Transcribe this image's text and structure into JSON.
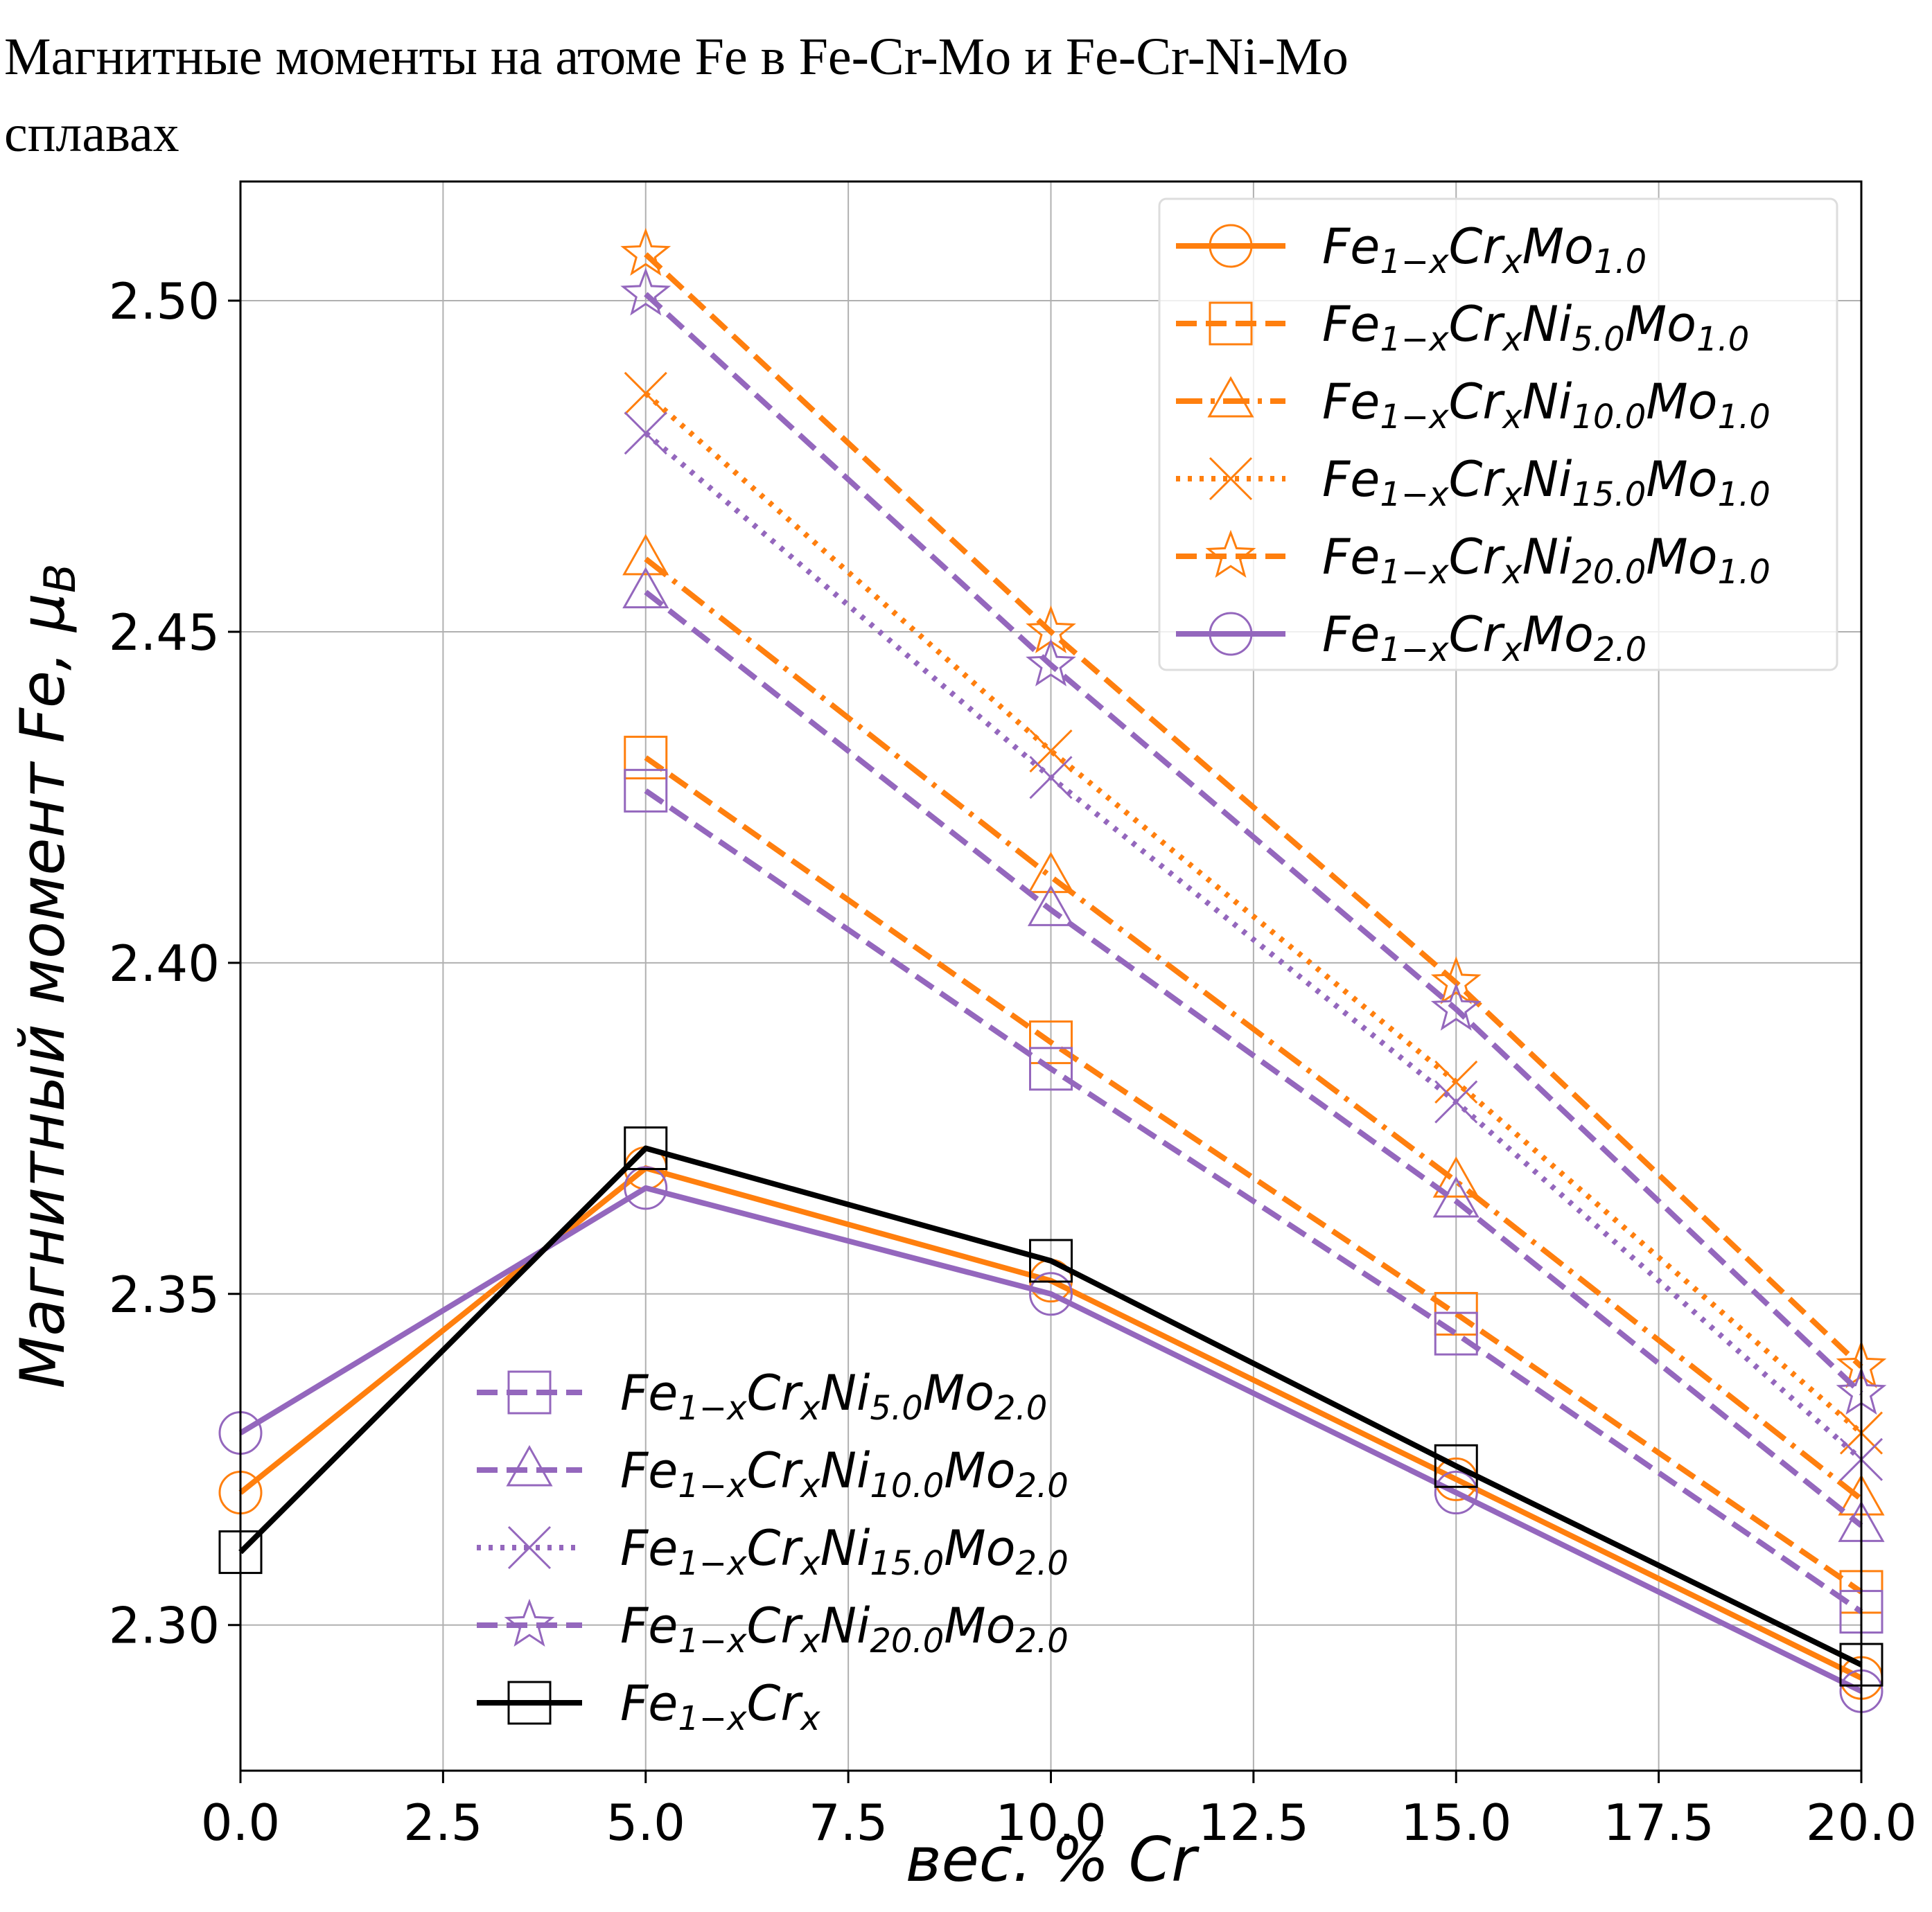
{
  "chart_data": {
    "type": "line",
    "title": "Магнитные моменты на атоме Fe в Fe-Cr-Mo и Fe-Cr-Ni-Mo сплавах",
    "title_lines": [
      "Магнитные моменты на атоме Fe в Fe-Cr-Mo и Fe-Cr-Ni-Mo",
      "сплавах"
    ],
    "xlabel": "вес. % Cr",
    "ylabel": "Магнитный момент Fe, μB",
    "xlim": [
      0,
      20
    ],
    "ylim": [
      2.278,
      2.518
    ],
    "x_ticks": [
      "0.0",
      "2.5",
      "5.0",
      "7.5",
      "10.0",
      "12.5",
      "15.0",
      "17.5",
      "20.0"
    ],
    "y_ticks": [
      "2.30",
      "2.35",
      "2.40",
      "2.45",
      "2.50"
    ],
    "grid": true,
    "legend_placement": [
      "upper-right",
      "lower-center"
    ],
    "series": [
      {
        "name": "Fe1−xCrxMo1.0",
        "color": "#ff7f0e",
        "dash": "solid",
        "marker": "circle",
        "legend": 0,
        "x": [
          0,
          5,
          10,
          15,
          20
        ],
        "y": [
          2.32,
          2.369,
          2.352,
          2.322,
          2.292
        ]
      },
      {
        "name": "Fe1−xCrxNi5.0Mo1.0",
        "color": "#ff7f0e",
        "dash": "dashed",
        "marker": "square",
        "legend": 0,
        "x": [
          5,
          10,
          15,
          20
        ],
        "y": [
          2.431,
          2.388,
          2.347,
          2.305
        ]
      },
      {
        "name": "Fe1−xCrxNi10.0Mo1.0",
        "color": "#ff7f0e",
        "dash": "dashdot",
        "marker": "triangle",
        "legend": 0,
        "x": [
          5,
          10,
          15,
          20
        ],
        "y": [
          2.461,
          2.413,
          2.367,
          2.319
        ]
      },
      {
        "name": "Fe1−xCrxNi15.0Mo1.0",
        "color": "#ff7f0e",
        "dash": "dotted",
        "marker": "x",
        "legend": 0,
        "x": [
          5,
          10,
          15,
          20
        ],
        "y": [
          2.486,
          2.432,
          2.382,
          2.329
        ]
      },
      {
        "name": "Fe1−xCrxNi20.0Mo1.0",
        "color": "#ff7f0e",
        "dash": "dashed",
        "marker": "star",
        "legend": 0,
        "x": [
          5,
          10,
          15,
          20
        ],
        "y": [
          2.507,
          2.45,
          2.397,
          2.339
        ]
      },
      {
        "name": "Fe1−xCrxMo2.0",
        "color": "#9467bd",
        "dash": "solid",
        "marker": "circle",
        "legend": 0,
        "x": [
          0,
          5,
          10,
          15,
          20
        ],
        "y": [
          2.329,
          2.366,
          2.35,
          2.32,
          2.29
        ]
      },
      {
        "name": "Fe1−xCrxNi5.0Mo2.0",
        "color": "#9467bd",
        "dash": "dashed",
        "marker": "square",
        "legend": 1,
        "x": [
          5,
          10,
          15,
          20
        ],
        "y": [
          2.426,
          2.384,
          2.344,
          2.302
        ]
      },
      {
        "name": "Fe1−xCrxNi10.0Mo2.0",
        "color": "#9467bd",
        "dash": "dashed",
        "marker": "triangle",
        "legend": 1,
        "x": [
          5,
          10,
          15,
          20
        ],
        "y": [
          2.456,
          2.408,
          2.364,
          2.315
        ]
      },
      {
        "name": "Fe1−xCrxNi15.0Mo2.0",
        "color": "#9467bd",
        "dash": "dotted",
        "marker": "x",
        "legend": 1,
        "x": [
          5,
          10,
          15,
          20
        ],
        "y": [
          2.48,
          2.428,
          2.379,
          2.325
        ]
      },
      {
        "name": "Fe1−xCrxNi20.0Mo2.0",
        "color": "#9467bd",
        "dash": "dashed",
        "marker": "star",
        "legend": 1,
        "x": [
          5,
          10,
          15,
          20
        ],
        "y": [
          2.501,
          2.445,
          2.393,
          2.335
        ]
      },
      {
        "name": "Fe1−xCrx",
        "color": "#000000",
        "dash": "solid",
        "marker": "square",
        "legend": 1,
        "x": [
          0,
          5,
          10,
          15,
          20
        ],
        "y": [
          2.311,
          2.372,
          2.355,
          2.324,
          2.294
        ]
      }
    ]
  }
}
